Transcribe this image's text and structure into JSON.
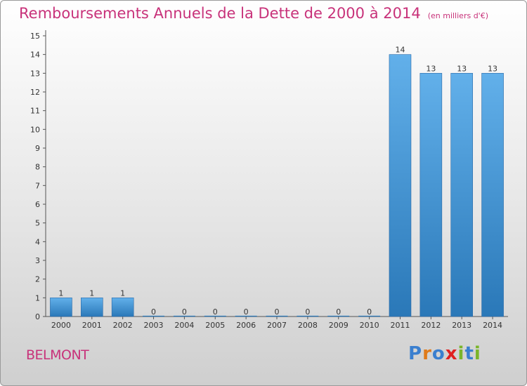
{
  "title": "Remboursements Annuels de la Dette de 2000 à 2014",
  "unit": "(en milliers d'€)",
  "commune": "BELMONT",
  "logo": {
    "text": "Proxiti",
    "letters": [
      "P",
      "r",
      "o",
      "x",
      "i",
      "t",
      "i"
    ],
    "colors": [
      "#3a7fcf",
      "#e07b1a",
      "#3a7fcf",
      "#e02020",
      "#7ab52a",
      "#3a7fcf",
      "#7ab52a"
    ]
  },
  "colors": {
    "title": "#c8327a",
    "bar_light": "#62b0ea",
    "bar_dark": "#2a78b8"
  },
  "chart_data": {
    "type": "bar",
    "categories": [
      "2000",
      "2001",
      "2002",
      "2003",
      "2004",
      "2005",
      "2006",
      "2007",
      "2008",
      "2009",
      "2010",
      "2011",
      "2012",
      "2013",
      "2014"
    ],
    "values": [
      1,
      1,
      1,
      0,
      0,
      0,
      0,
      0,
      0,
      0,
      0,
      14,
      13,
      13,
      13
    ],
    "yticks": [
      0,
      1,
      2,
      3,
      4,
      5,
      6,
      7,
      8,
      9,
      10,
      11,
      12,
      13,
      14,
      15
    ],
    "ylim": [
      0,
      15
    ],
    "grid": false,
    "legend": "none"
  }
}
